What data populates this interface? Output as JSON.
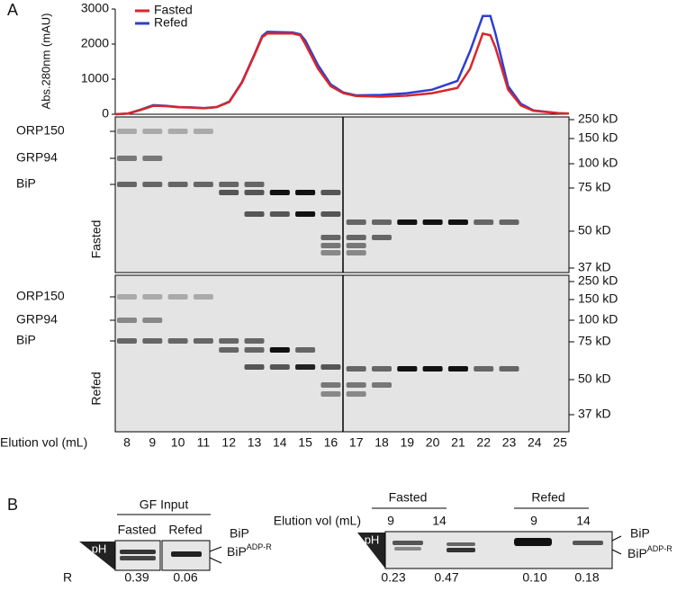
{
  "panel_labels": [
    "A",
    "B"
  ],
  "chart_data": {
    "type": "line",
    "y_label": "Abs.280nm (mAU)",
    "x": [
      7.5,
      8,
      8.5,
      9,
      9.5,
      10,
      10.5,
      11,
      11.5,
      12,
      12.5,
      13,
      13.3,
      13.5,
      14,
      14.5,
      14.8,
      15,
      15.5,
      16,
      16.5,
      17,
      18,
      19,
      20,
      21,
      21.5,
      22,
      22.3,
      22.5,
      23,
      23.5,
      24,
      25,
      25.4
    ],
    "series": [
      {
        "name": "Fasted",
        "color": "#d9262b",
        "values": [
          0,
          20,
          120,
          240,
          230,
          200,
          190,
          170,
          200,
          350,
          900,
          1700,
          2200,
          2300,
          2300,
          2300,
          2250,
          2000,
          1300,
          800,
          600,
          520,
          500,
          530,
          600,
          750,
          1300,
          2300,
          2250,
          1900,
          700,
          250,
          100,
          30,
          20
        ]
      },
      {
        "name": "Refed",
        "color": "#2e3fd0",
        "values": [
          0,
          20,
          130,
          260,
          240,
          205,
          195,
          175,
          205,
          360,
          920,
          1720,
          2230,
          2350,
          2340,
          2330,
          2280,
          2100,
          1400,
          850,
          620,
          540,
          550,
          600,
          700,
          950,
          1800,
          2800,
          2800,
          2300,
          800,
          300,
          110,
          30,
          20
        ]
      }
    ],
    "xlim": [
      7.5,
      25.4
    ],
    "ylim": [
      0,
      3000
    ],
    "yticks": [
      0,
      1000,
      2000,
      3000
    ]
  },
  "gels": {
    "elution_label": "Elution vol (mL)",
    "lanes": [
      "8",
      "9",
      "10",
      "11",
      "12",
      "13",
      "14",
      "15",
      "16",
      "17",
      "18",
      "19",
      "20",
      "21",
      "22",
      "23",
      "24",
      "25"
    ],
    "fasted": {
      "label": "Fasted",
      "proteins": [
        "ORP150",
        "GRP94",
        "BiP"
      ],
      "markers": [
        "250 kD",
        "150 kD",
        "100 kD",
        "75 kD",
        "50 kD",
        "37 kD"
      ]
    },
    "refed": {
      "label": "Refed",
      "proteins": [
        "ORP150",
        "GRP94",
        "BiP"
      ],
      "markers": [
        "250 kD",
        "150 kD",
        "100 kD",
        "75 kD",
        "50 kD",
        "37 kD"
      ]
    }
  },
  "panel_b": {
    "input_title": "GF Input",
    "input_conditions": [
      "Fasted",
      "Refed"
    ],
    "ph": "pH",
    "bip": "BiP",
    "bip_adpr": {
      "base": "BiP",
      "sup": "ADP-R"
    },
    "r_label": "R",
    "input_r": [
      "0.39",
      "0.06"
    ],
    "elution_label": "Elution vol (mL)",
    "groups": [
      "Fasted",
      "Refed"
    ],
    "lanes": [
      "9",
      "14",
      "9",
      "14"
    ],
    "r": [
      "0.23",
      "0.47",
      "0.10",
      "0.18"
    ]
  }
}
